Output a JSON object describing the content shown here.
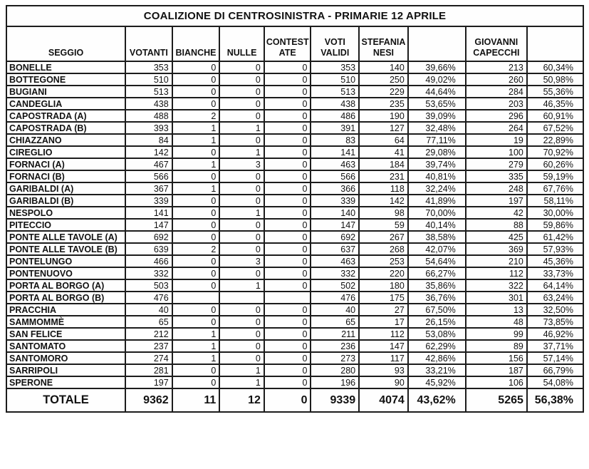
{
  "title": "COALIZIONE DI CENTROSINISTRA - PRIMARIE 12 APRILE",
  "table": {
    "headers": {
      "seggio": "SEGGIO",
      "votanti": "VOTANTI",
      "bianche": "BIANCHE",
      "nulle": "NULLE",
      "contestate": "CONTEST ATE",
      "voti_validi": "VOTI VALIDI",
      "nesi": "STEFANIA NESI",
      "nesi_pct": "",
      "capecchi": "GIOVANNI CAPECCHI",
      "capecchi_pct": ""
    },
    "column_order": [
      "seggio",
      "votanti",
      "bianche",
      "nulle",
      "contestate",
      "voti_validi",
      "nesi",
      "nesi_pct",
      "capecchi",
      "capecchi_pct"
    ],
    "rows": [
      {
        "seggio": "BONELLE",
        "votanti": 353,
        "bianche": 0,
        "nulle": 0,
        "contestate": 0,
        "voti_validi": 353,
        "nesi": 140,
        "nesi_pct": "39,66%",
        "capecchi": 213,
        "capecchi_pct": "60,34%"
      },
      {
        "seggio": "BOTTEGONE",
        "votanti": 510,
        "bianche": 0,
        "nulle": 0,
        "contestate": 0,
        "voti_validi": 510,
        "nesi": 250,
        "nesi_pct": "49,02%",
        "capecchi": 260,
        "capecchi_pct": "50,98%"
      },
      {
        "seggio": "BUGIANI",
        "votanti": 513,
        "bianche": 0,
        "nulle": 0,
        "contestate": 0,
        "voti_validi": 513,
        "nesi": 229,
        "nesi_pct": "44,64%",
        "capecchi": 284,
        "capecchi_pct": "55,36%"
      },
      {
        "seggio": "CANDEGLIA",
        "votanti": 438,
        "bianche": 0,
        "nulle": 0,
        "contestate": 0,
        "voti_validi": 438,
        "nesi": 235,
        "nesi_pct": "53,65%",
        "capecchi": 203,
        "capecchi_pct": "46,35%"
      },
      {
        "seggio": "CAPOSTRADA (A)",
        "votanti": 488,
        "bianche": 2,
        "nulle": 0,
        "contestate": 0,
        "voti_validi": 486,
        "nesi": 190,
        "nesi_pct": "39,09%",
        "capecchi": 296,
        "capecchi_pct": "60,91%"
      },
      {
        "seggio": "CAPOSTRADA (B)",
        "votanti": 393,
        "bianche": 1,
        "nulle": 1,
        "contestate": 0,
        "voti_validi": 391,
        "nesi": 127,
        "nesi_pct": "32,48%",
        "capecchi": 264,
        "capecchi_pct": "67,52%"
      },
      {
        "seggio": "CHIAZZANO",
        "votanti": 84,
        "bianche": 1,
        "nulle": 0,
        "contestate": 0,
        "voti_validi": 83,
        "nesi": 64,
        "nesi_pct": "77,11%",
        "capecchi": 19,
        "capecchi_pct": "22,89%"
      },
      {
        "seggio": "CIREGLIO",
        "votanti": 142,
        "bianche": 0,
        "nulle": 1,
        "contestate": 0,
        "voti_validi": 141,
        "nesi": 41,
        "nesi_pct": "29,08%",
        "capecchi": 100,
        "capecchi_pct": "70,92%"
      },
      {
        "seggio": "FORNACI (A)",
        "votanti": 467,
        "bianche": 1,
        "nulle": 3,
        "contestate": 0,
        "voti_validi": 463,
        "nesi": 184,
        "nesi_pct": "39,74%",
        "capecchi": 279,
        "capecchi_pct": "60,26%"
      },
      {
        "seggio": "FORNACI (B)",
        "votanti": 566,
        "bianche": 0,
        "nulle": 0,
        "contestate": 0,
        "voti_validi": 566,
        "nesi": 231,
        "nesi_pct": "40,81%",
        "capecchi": 335,
        "capecchi_pct": "59,19%"
      },
      {
        "seggio": "GARIBALDI (A)",
        "votanti": 367,
        "bianche": 1,
        "nulle": 0,
        "contestate": 0,
        "voti_validi": 366,
        "nesi": 118,
        "nesi_pct": "32,24%",
        "capecchi": 248,
        "capecchi_pct": "67,76%"
      },
      {
        "seggio": "GARIBALDI (B)",
        "votanti": 339,
        "bianche": 0,
        "nulle": 0,
        "contestate": 0,
        "voti_validi": 339,
        "nesi": 142,
        "nesi_pct": "41,89%",
        "capecchi": 197,
        "capecchi_pct": "58,11%"
      },
      {
        "seggio": "NESPOLO",
        "votanti": 141,
        "bianche": 0,
        "nulle": 1,
        "contestate": 0,
        "voti_validi": 140,
        "nesi": 98,
        "nesi_pct": "70,00%",
        "capecchi": 42,
        "capecchi_pct": "30,00%"
      },
      {
        "seggio": "PITECCIO",
        "votanti": 147,
        "bianche": 0,
        "nulle": 0,
        "contestate": 0,
        "voti_validi": 147,
        "nesi": 59,
        "nesi_pct": "40,14%",
        "capecchi": 88,
        "capecchi_pct": "59,86%"
      },
      {
        "seggio": "PONTE ALLE TAVOLE (A)",
        "votanti": 692,
        "bianche": 0,
        "nulle": 0,
        "contestate": 0,
        "voti_validi": 692,
        "nesi": 267,
        "nesi_pct": "38,58%",
        "capecchi": 425,
        "capecchi_pct": "61,42%"
      },
      {
        "seggio": "PONTE ALLE TAVOLE (B)",
        "votanti": 639,
        "bianche": 2,
        "nulle": 0,
        "contestate": 0,
        "voti_validi": 637,
        "nesi": 268,
        "nesi_pct": "42,07%",
        "capecchi": 369,
        "capecchi_pct": "57,93%"
      },
      {
        "seggio": "PONTELUNGO",
        "votanti": 466,
        "bianche": 0,
        "nulle": 3,
        "contestate": 0,
        "voti_validi": 463,
        "nesi": 253,
        "nesi_pct": "54,64%",
        "capecchi": 210,
        "capecchi_pct": "45,36%"
      },
      {
        "seggio": "PONTENUOVO",
        "votanti": 332,
        "bianche": 0,
        "nulle": 0,
        "contestate": 0,
        "voti_validi": 332,
        "nesi": 220,
        "nesi_pct": "66,27%",
        "capecchi": 112,
        "capecchi_pct": "33,73%"
      },
      {
        "seggio": "PORTA AL BORGO (A)",
        "votanti": 503,
        "bianche": 0,
        "nulle": 1,
        "contestate": 0,
        "voti_validi": 502,
        "nesi": 180,
        "nesi_pct": "35,86%",
        "capecchi": 322,
        "capecchi_pct": "64,14%"
      },
      {
        "seggio": "PORTA AL BORGO (B)",
        "votanti": 476,
        "bianche": "",
        "nulle": "",
        "contestate": "",
        "voti_validi": 476,
        "nesi": 175,
        "nesi_pct": "36,76%",
        "capecchi": 301,
        "capecchi_pct": "63,24%"
      },
      {
        "seggio": "PRACCHIA",
        "votanti": 40,
        "bianche": 0,
        "nulle": 0,
        "contestate": 0,
        "voti_validi": 40,
        "nesi": 27,
        "nesi_pct": "67,50%",
        "capecchi": 13,
        "capecchi_pct": "32,50%"
      },
      {
        "seggio": "SAMMOMMÈ",
        "votanti": 65,
        "bianche": 0,
        "nulle": 0,
        "contestate": 0,
        "voti_validi": 65,
        "nesi": 17,
        "nesi_pct": "26,15%",
        "capecchi": 48,
        "capecchi_pct": "73,85%"
      },
      {
        "seggio": "SAN FELICE",
        "votanti": 212,
        "bianche": 1,
        "nulle": 0,
        "contestate": 0,
        "voti_validi": 211,
        "nesi": 112,
        "nesi_pct": "53,08%",
        "capecchi": 99,
        "capecchi_pct": "46,92%"
      },
      {
        "seggio": "SANTOMATO",
        "votanti": 237,
        "bianche": 1,
        "nulle": 0,
        "contestate": 0,
        "voti_validi": 236,
        "nesi": 147,
        "nesi_pct": "62,29%",
        "capecchi": 89,
        "capecchi_pct": "37,71%"
      },
      {
        "seggio": "SANTOMORO",
        "votanti": 274,
        "bianche": 1,
        "nulle": 0,
        "contestate": 0,
        "voti_validi": 273,
        "nesi": 117,
        "nesi_pct": "42,86%",
        "capecchi": 156,
        "capecchi_pct": "57,14%"
      },
      {
        "seggio": "SARRIPOLI",
        "votanti": 281,
        "bianche": 0,
        "nulle": 1,
        "contestate": 0,
        "voti_validi": 280,
        "nesi": 93,
        "nesi_pct": "33,21%",
        "capecchi": 187,
        "capecchi_pct": "66,79%"
      },
      {
        "seggio": "SPERONE",
        "votanti": 197,
        "bianche": 0,
        "nulle": 1,
        "contestate": 0,
        "voti_validi": 196,
        "nesi": 90,
        "nesi_pct": "45,92%",
        "capecchi": 106,
        "capecchi_pct": "54,08%"
      }
    ],
    "total": {
      "seggio": "TOTALE",
      "votanti": 9362,
      "bianche": 11,
      "nulle": 12,
      "contestate": 0,
      "voti_validi": 9339,
      "nesi": 4074,
      "nesi_pct": "43,62%",
      "capecchi": 5265,
      "capecchi_pct": "56,38%"
    }
  }
}
